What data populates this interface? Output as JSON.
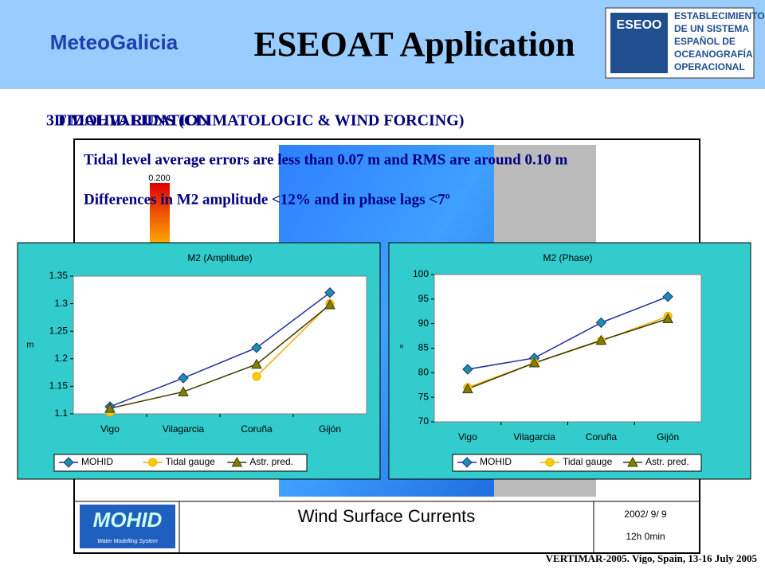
{
  "slide": {
    "logo_left": "MeteoGalicia",
    "title": "ESEOAT Application",
    "logo_right_short": "ESEOO",
    "logo_right_lines": [
      "ESTABLECIMIENTO",
      "DE UN SISTEMA",
      "ESPAÑOL DE",
      "OCEANOGRAFÍA",
      "OPERACIONAL"
    ],
    "heading_a": "TIDAL VALIDATION",
    "heading_b": "3D MOHID RUNS (CLIMATOLOGIC & WIND FORCING)",
    "note_1": "Tidal level average errors are less than 0.07 m and RMS are around 0.10 m",
    "note_2": "Differences in M2 amplitude <12% and in phase lags <7º",
    "map_scale": "0.200",
    "map_logo": "MOHID",
    "map_logo_sub": "Water Modelling System",
    "map_title": "Wind Surface Currents",
    "map_date": "2002/ 9/ 9",
    "map_time": "12h 0min",
    "footer": "VERTIMAR-2005. Vigo, Spain, 13-16 July 2005"
  },
  "chart_data": [
    {
      "type": "line",
      "title": "M2 (Amplitude)",
      "y_label": "m",
      "categories": [
        "Vigo",
        "Vilagarcia",
        "Coruña",
        "Gijón"
      ],
      "ylim": [
        1.1,
        1.35
      ],
      "yticks": [
        1.1,
        1.15,
        1.2,
        1.25,
        1.3,
        1.35
      ],
      "series": [
        {
          "name": "MOHID",
          "color": "#1f2f9f",
          "marker_color": "#1f8fa0",
          "values": [
            1.113,
            1.165,
            1.22,
            1.32
          ]
        },
        {
          "name": "Tidal gauge",
          "color": "#f5a800",
          "marker_color": "#ffcc00",
          "values": [
            1.103,
            null,
            1.168,
            1.3
          ]
        },
        {
          "name": "Astr. pred.",
          "color": "#3a3a00",
          "marker_color": "#808000",
          "values": [
            1.11,
            1.14,
            1.19,
            1.298
          ]
        }
      ]
    },
    {
      "type": "line",
      "title": "M2 (Phase)",
      "y_label": "º",
      "categories": [
        "Vigo",
        "Vilagarcia",
        "Coruña",
        "Gijón"
      ],
      "ylim": [
        70,
        100
      ],
      "yticks": [
        70,
        75,
        80,
        85,
        90,
        95,
        100
      ],
      "series": [
        {
          "name": "MOHID",
          "color": "#1f2f9f",
          "marker_color": "#1f8fa0",
          "values": [
            80.7,
            83,
            90.2,
            95.5
          ]
        },
        {
          "name": "Tidal gauge",
          "color": "#f5a800",
          "marker_color": "#ffcc00",
          "values": [
            77,
            82,
            86.5,
            91.5
          ]
        },
        {
          "name": "Astr. pred.",
          "color": "#3a3a00",
          "marker_color": "#808000",
          "values": [
            76.7,
            82,
            86.6,
            91
          ]
        }
      ]
    }
  ]
}
